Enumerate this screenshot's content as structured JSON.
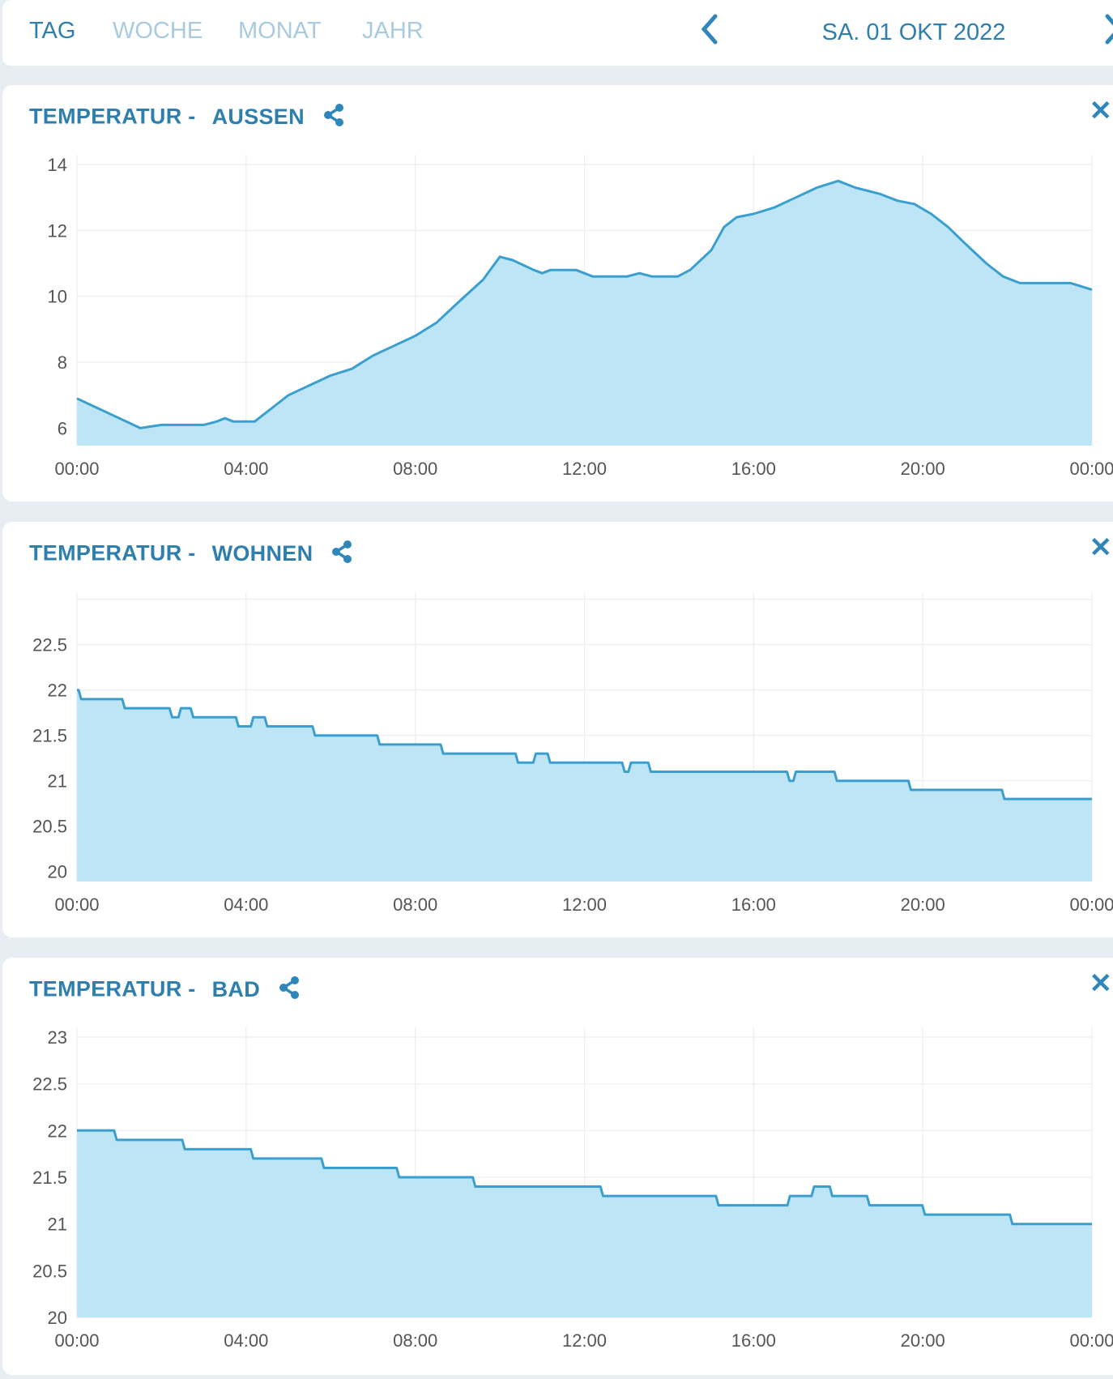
{
  "header": {
    "tabs": [
      {
        "label": "TAG",
        "active": true
      },
      {
        "label": "WOCHE",
        "active": false
      },
      {
        "label": "MONAT",
        "active": false
      },
      {
        "label": "JAHR",
        "active": false
      }
    ],
    "date": "SA. 01 OKT 2022",
    "prev_icon": "chevron-left-icon",
    "next_icon": "chevron-right-icon"
  },
  "colors": {
    "line": "#3a9fcf",
    "fill": "#bee5f5",
    "title": "#2f7fae",
    "grid": "#eeeeee"
  },
  "chart_data": [
    {
      "type": "area",
      "title_prefix": "TEMPERATUR -",
      "title": "AUSSEN",
      "step": false,
      "xlabel": "",
      "ylabel": "",
      "xlim": [
        0,
        24
      ],
      "ylim": [
        5.47,
        14
      ],
      "x_ticks": [
        "00:00",
        "04:00",
        "08:00",
        "12:00",
        "16:00",
        "20:00",
        "00:00"
      ],
      "y_ticks": [
        6,
        8,
        10,
        12,
        14
      ],
      "y_tick_labels": [
        "6",
        "8",
        "10",
        "12",
        "14"
      ],
      "points": [
        [
          0,
          6.9
        ],
        [
          0.5,
          6.6
        ],
        [
          1,
          6.3
        ],
        [
          1.5,
          6.0
        ],
        [
          2,
          6.1
        ],
        [
          3,
          6.1
        ],
        [
          3.3,
          6.2
        ],
        [
          3.5,
          6.3
        ],
        [
          3.7,
          6.2
        ],
        [
          4.2,
          6.2
        ],
        [
          4.6,
          6.6
        ],
        [
          5,
          7.0
        ],
        [
          5.5,
          7.3
        ],
        [
          6,
          7.6
        ],
        [
          6.5,
          7.8
        ],
        [
          7,
          8.2
        ],
        [
          7.5,
          8.5
        ],
        [
          8,
          8.8
        ],
        [
          8.5,
          9.2
        ],
        [
          9,
          9.8
        ],
        [
          9.6,
          10.5
        ],
        [
          10,
          11.2
        ],
        [
          10.3,
          11.1
        ],
        [
          10.8,
          10.8
        ],
        [
          11,
          10.7
        ],
        [
          11.2,
          10.8
        ],
        [
          11.8,
          10.8
        ],
        [
          12.2,
          10.6
        ],
        [
          13,
          10.6
        ],
        [
          13.3,
          10.7
        ],
        [
          13.6,
          10.6
        ],
        [
          14.2,
          10.6
        ],
        [
          14.5,
          10.8
        ],
        [
          15,
          11.4
        ],
        [
          15.3,
          12.1
        ],
        [
          15.6,
          12.4
        ],
        [
          16,
          12.5
        ],
        [
          16.5,
          12.7
        ],
        [
          17,
          13.0
        ],
        [
          17.5,
          13.3
        ],
        [
          18,
          13.5
        ],
        [
          18.4,
          13.3
        ],
        [
          19,
          13.1
        ],
        [
          19.4,
          12.9
        ],
        [
          19.8,
          12.8
        ],
        [
          20.2,
          12.5
        ],
        [
          20.6,
          12.1
        ],
        [
          21,
          11.6
        ],
        [
          21.5,
          11.0
        ],
        [
          21.9,
          10.6
        ],
        [
          22.3,
          10.4
        ],
        [
          23.5,
          10.4
        ],
        [
          24,
          10.2
        ]
      ]
    },
    {
      "type": "area",
      "title_prefix": "TEMPERATUR -",
      "title": "WOHNEN",
      "step": true,
      "xlabel": "",
      "ylabel": "",
      "xlim": [
        0,
        24
      ],
      "ylim": [
        19.89,
        22.97
      ],
      "x_ticks": [
        "00:00",
        "04:00",
        "08:00",
        "12:00",
        "16:00",
        "20:00",
        "00:00"
      ],
      "y_ticks": [
        20,
        20.5,
        21,
        21.5,
        22,
        22.5,
        23
      ],
      "y_tick_labels": [
        "20",
        "20.5",
        "21",
        "21.5",
        "22",
        "22.5",
        ""
      ],
      "points": [
        [
          0,
          22.0
        ],
        [
          0.1,
          21.9
        ],
        [
          1.13,
          21.8
        ],
        [
          2.25,
          21.7
        ],
        [
          2.46,
          21.8
        ],
        [
          2.75,
          21.7
        ],
        [
          3.82,
          21.6
        ],
        [
          4.17,
          21.7
        ],
        [
          4.5,
          21.6
        ],
        [
          5.63,
          21.5
        ],
        [
          7.16,
          21.4
        ],
        [
          8.66,
          21.3
        ],
        [
          10.43,
          21.2
        ],
        [
          10.85,
          21.3
        ],
        [
          11.19,
          21.2
        ],
        [
          12.95,
          21.1
        ],
        [
          13.1,
          21.2
        ],
        [
          13.57,
          21.1
        ],
        [
          16.85,
          21.0
        ],
        [
          17.0,
          21.1
        ],
        [
          17.97,
          21.0
        ],
        [
          19.72,
          20.9
        ],
        [
          21.93,
          20.8
        ],
        [
          24,
          20.8
        ]
      ]
    },
    {
      "type": "area",
      "title_prefix": "TEMPERATUR -",
      "title": "BAD",
      "step": true,
      "xlabel": "",
      "ylabel": "",
      "xlim": [
        0,
        24
      ],
      "ylim": [
        20,
        23
      ],
      "x_ticks": [
        "00:00",
        "04:00",
        "08:00",
        "12:00",
        "16:00",
        "20:00",
        "00:00"
      ],
      "y_ticks": [
        20,
        20.5,
        21,
        21.5,
        22,
        22.5,
        23
      ],
      "y_tick_labels": [
        "20",
        "20.5",
        "21",
        "21.5",
        "22",
        "22.5",
        "23"
      ],
      "points": [
        [
          0,
          22.0
        ],
        [
          0.94,
          21.9
        ],
        [
          2.55,
          21.8
        ],
        [
          4.17,
          21.7
        ],
        [
          5.84,
          21.6
        ],
        [
          7.62,
          21.5
        ],
        [
          9.42,
          21.4
        ],
        [
          12.44,
          21.3
        ],
        [
          15.17,
          21.2
        ],
        [
          16.86,
          21.3
        ],
        [
          17.43,
          21.4
        ],
        [
          17.86,
          21.3
        ],
        [
          18.74,
          21.2
        ],
        [
          20.05,
          21.1
        ],
        [
          22.12,
          21.0
        ],
        [
          24,
          21.0
        ]
      ]
    }
  ]
}
